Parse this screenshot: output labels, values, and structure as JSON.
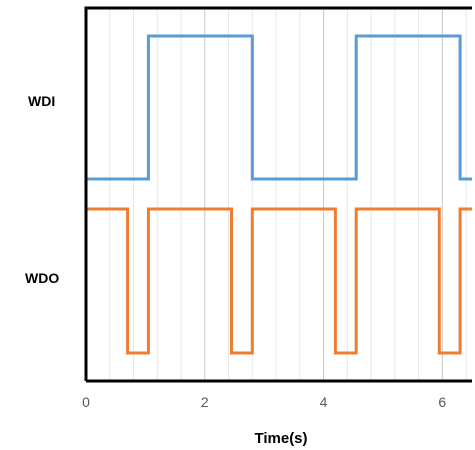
{
  "chart_data": {
    "type": "line",
    "title": "",
    "xlabel": "Time(s)",
    "ylabel": "",
    "xlim": [
      0,
      6.5
    ],
    "x_ticks": [
      0,
      2,
      4,
      6
    ],
    "x_tick_labels": [
      "0",
      "2",
      "4",
      "6"
    ],
    "minor_x_gridline_step": 0.4,
    "grid": true,
    "step_plot": true,
    "series": [
      {
        "name": "WDI",
        "color": "#5b9bd5",
        "x": [
          0,
          1.05,
          1.05,
          2.8,
          2.8,
          4.55,
          4.55,
          6.3,
          6.3,
          6.5
        ],
        "y": [
          0,
          0,
          1,
          1,
          0,
          0,
          1,
          1,
          0,
          0
        ]
      },
      {
        "name": "WDO",
        "color": "#ed7d31",
        "x": [
          0,
          0.7,
          0.7,
          1.05,
          1.05,
          2.45,
          2.45,
          2.8,
          2.8,
          4.2,
          4.2,
          4.55,
          4.55,
          5.95,
          5.95,
          6.3,
          6.3,
          6.5
        ],
        "y": [
          1,
          1,
          0,
          0,
          1,
          1,
          0,
          0,
          1,
          1,
          0,
          0,
          1,
          1,
          0,
          0,
          1,
          1
        ]
      }
    ]
  }
}
